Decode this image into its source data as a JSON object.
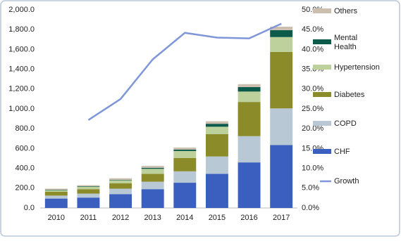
{
  "chart_data": {
    "type": "bar",
    "categories": [
      "2010",
      "2011",
      "2012",
      "2013",
      "2014",
      "2015",
      "2016",
      "2017"
    ],
    "stacked": true,
    "series": [
      {
        "name": "CHF",
        "color": "#3a5fbf",
        "values": [
          95,
          105,
          140,
          190,
          255,
          345,
          460,
          635
        ]
      },
      {
        "name": "COPD",
        "color": "#b8c8d4",
        "values": [
          30,
          40,
          55,
          75,
          115,
          175,
          265,
          370
        ]
      },
      {
        "name": "Diabetes",
        "color": "#8b8b2a",
        "values": [
          40,
          45,
          55,
          80,
          135,
          225,
          345,
          570
        ]
      },
      {
        "name": "Hypertension",
        "color": "#bcd19c",
        "values": [
          15,
          25,
          30,
          50,
          70,
          75,
          105,
          150
        ]
      },
      {
        "name": "Mental Health",
        "color": "#0b5a4a",
        "values": [
          5,
          5,
          5,
          10,
          15,
          30,
          45,
          70
        ]
      },
      {
        "name": "Others",
        "color": "#cdbfb0",
        "values": [
          10,
          10,
          15,
          20,
          20,
          25,
          30,
          35
        ]
      },
      {
        "name": "Growth",
        "color": "#7f96d8",
        "type": "line",
        "axis": "y2",
        "values": [
          null,
          22.2,
          27.5,
          37.5,
          44.2,
          43.0,
          42.8,
          46.5
        ]
      }
    ],
    "ylim": [
      0,
      2000
    ],
    "yticks": [
      {
        "value": 0,
        "label": "0.0"
      },
      {
        "value": 200,
        "label": "200.0"
      },
      {
        "value": 400,
        "label": "400.0"
      },
      {
        "value": 600,
        "label": "600.0"
      },
      {
        "value": 800,
        "label": "800.0"
      },
      {
        "value": 1000,
        "label": "1,000.0"
      },
      {
        "value": 1200,
        "label": "1,200.0"
      },
      {
        "value": 1400,
        "label": "1,400.0"
      },
      {
        "value": 1600,
        "label": "1,600.0"
      },
      {
        "value": 1800,
        "label": "1,800.0"
      },
      {
        "value": 2000,
        "label": "2,000.0"
      }
    ],
    "y2lim": [
      0,
      50
    ],
    "y2ticks": [
      {
        "value": 0,
        "label": "0.0%"
      },
      {
        "value": 5,
        "label": "5.0%"
      },
      {
        "value": 10,
        "label": "10.0%"
      },
      {
        "value": 15,
        "label": "15.0%"
      },
      {
        "value": 20,
        "label": "20.0%"
      },
      {
        "value": 25,
        "label": "25.0%"
      },
      {
        "value": 30,
        "label": "30.0%"
      },
      {
        "value": 35,
        "label": "35.0%"
      },
      {
        "value": 40,
        "label": "40.0%"
      },
      {
        "value": 45,
        "label": "45.0%"
      },
      {
        "value": 50,
        "label": "50.0%"
      }
    ],
    "legend": "right"
  }
}
